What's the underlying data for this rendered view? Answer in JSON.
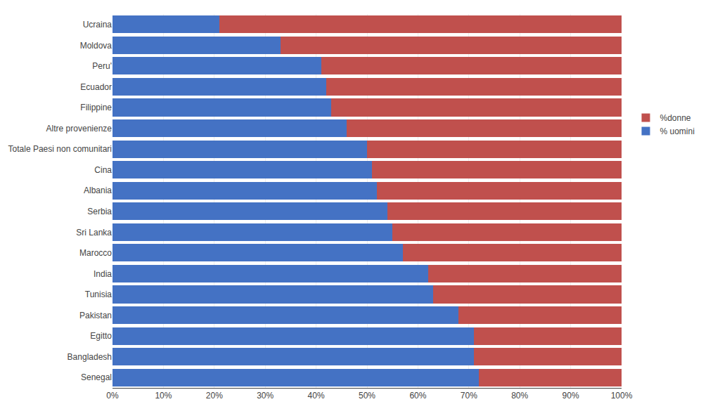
{
  "chart_data": {
    "type": "bar",
    "orientation": "horizontal",
    "stacked": true,
    "categories": [
      "Senegal",
      "Bangladesh",
      "Egitto",
      "Pakistan",
      "Tunisia",
      "India",
      "Marocco",
      "Sri Lanka",
      "Serbia",
      "Albania",
      "Cina",
      "Totale Paesi non comunitari",
      "Altre provenienze",
      "Filippine",
      "Ecuador",
      "Peru'",
      "Moldova",
      "Ucraina"
    ],
    "series": [
      {
        "name": "% uomini",
        "color": "#4472C4",
        "values": [
          72,
          71,
          71,
          68,
          63,
          62,
          57,
          55,
          54,
          52,
          51,
          50,
          46,
          43,
          42,
          41,
          33,
          21
        ]
      },
      {
        "name": "%donne",
        "color": "#C0504D",
        "values": [
          28,
          29,
          29,
          32,
          37,
          38,
          43,
          45,
          46,
          48,
          49,
          50,
          54,
          57,
          58,
          59,
          67,
          79
        ]
      }
    ],
    "xlim": [
      0,
      100
    ],
    "xticks": [
      {
        "value": 0,
        "label": "0%"
      },
      {
        "value": 10,
        "label": "10%"
      },
      {
        "value": 20,
        "label": "20%"
      },
      {
        "value": 30,
        "label": "30%"
      },
      {
        "value": 40,
        "label": "40%"
      },
      {
        "value": 50,
        "label": "50%"
      },
      {
        "value": 60,
        "label": "60%"
      },
      {
        "value": 70,
        "label": "70%"
      },
      {
        "value": 80,
        "label": "80%"
      },
      {
        "value": 90,
        "label": "90%"
      },
      {
        "value": 100,
        "label": "100%"
      }
    ],
    "grid": true,
    "legend": "right"
  }
}
